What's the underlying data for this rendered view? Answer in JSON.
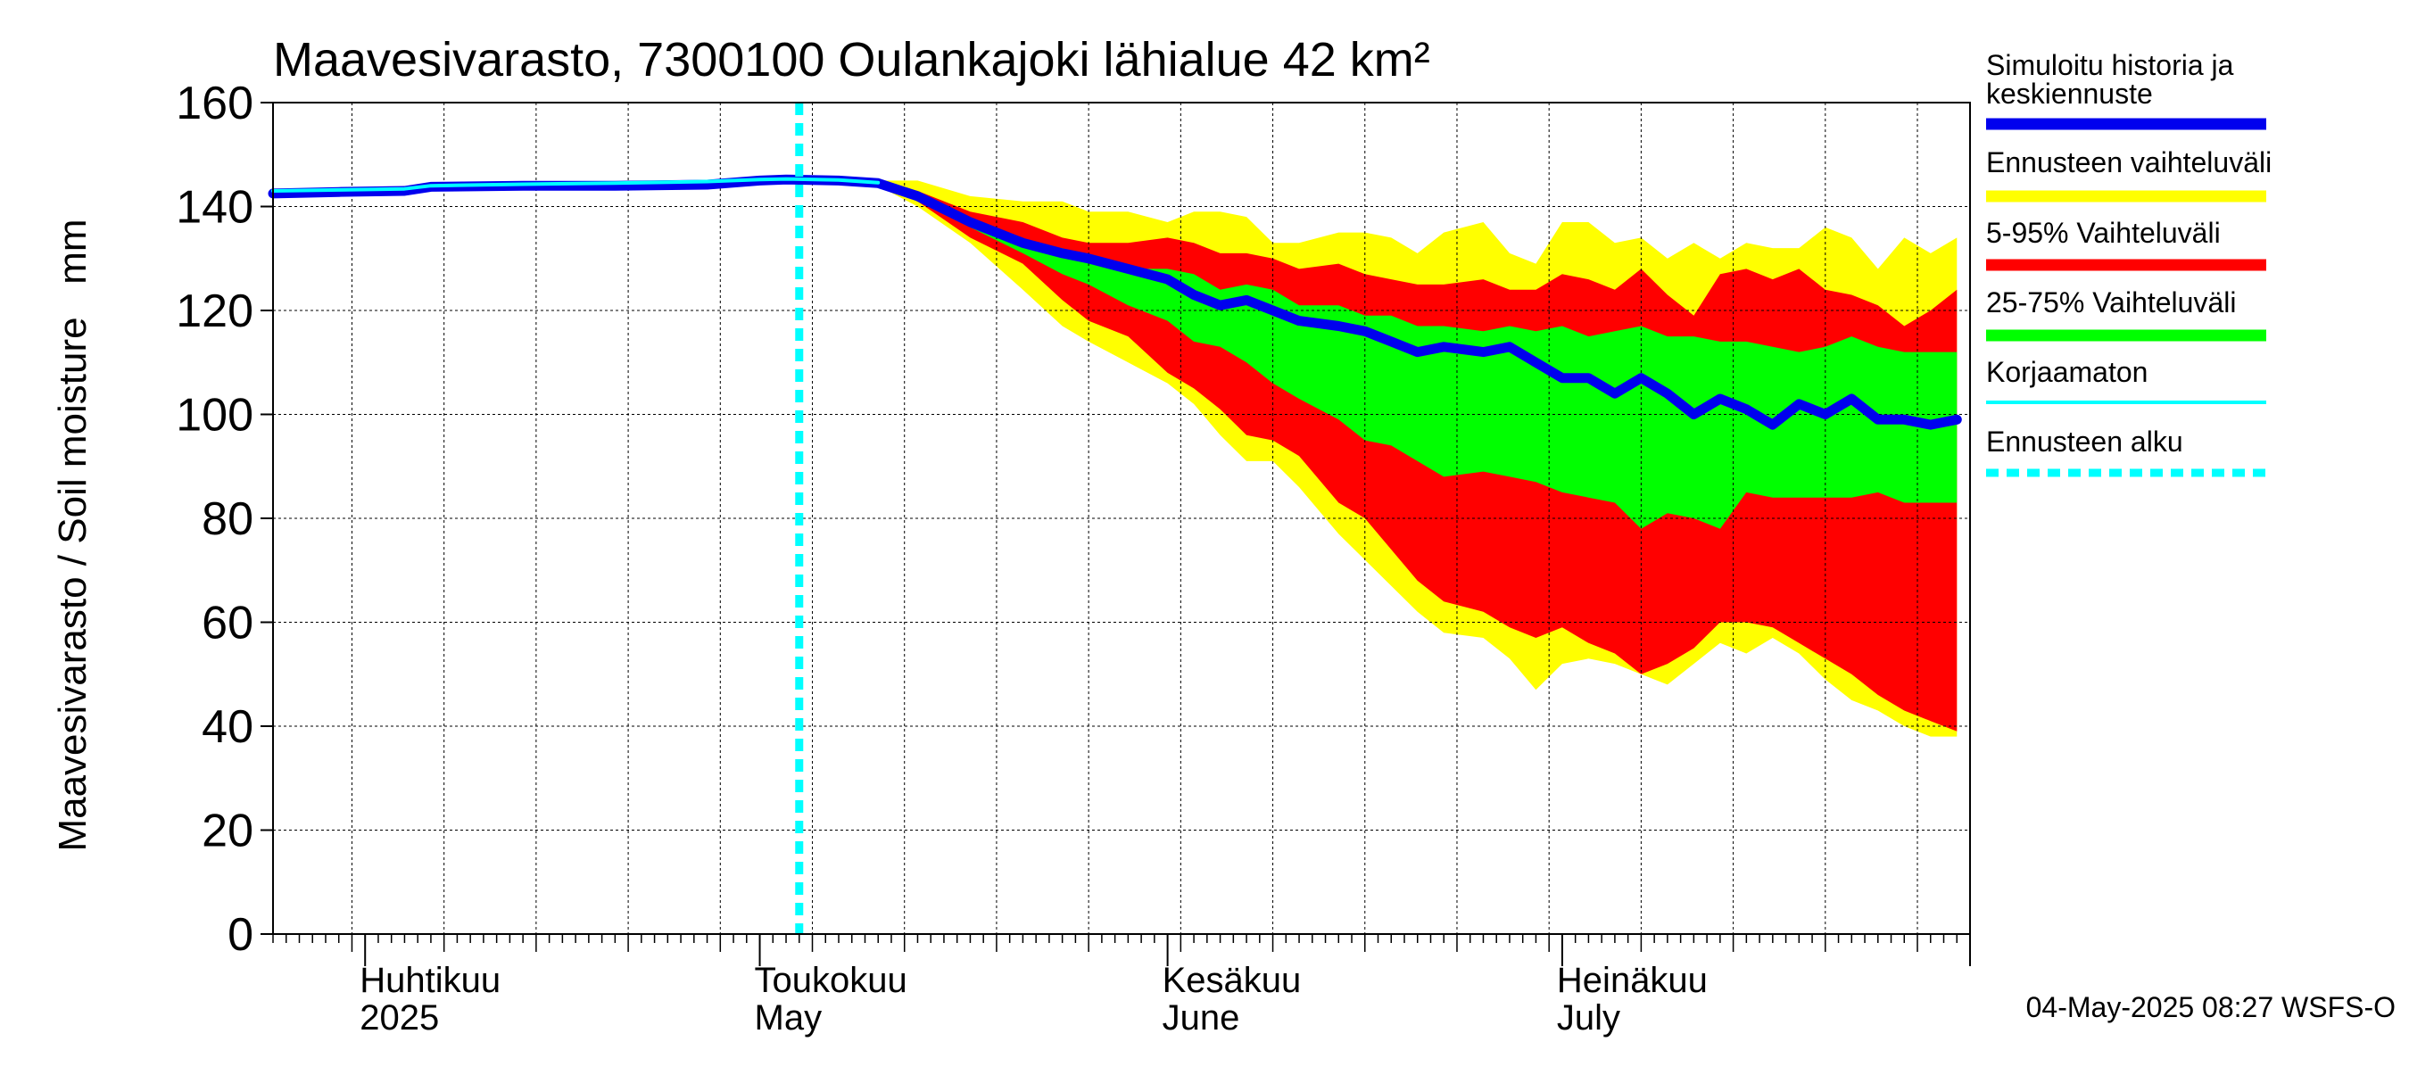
{
  "chart_data": {
    "type": "area",
    "title": "Maavesivarasto, 7300100 Oulankajoki lähialue 42 km²",
    "ylabel": "Maavesivarasto / Soil moisture   mm",
    "ylim": [
      0,
      160
    ],
    "yticks": [
      0,
      20,
      40,
      60,
      80,
      100,
      120,
      140,
      160
    ],
    "xlim": [
      "2025-03-25",
      "2025-08-01"
    ],
    "forecast_start": "2025-05-04",
    "month_labels": [
      {
        "date": "2025-04-01",
        "fi": "Huhtikuu",
        "en": "2025"
      },
      {
        "date": "2025-05-01",
        "fi": "Toukokuu",
        "en": "May"
      },
      {
        "date": "2025-06-01",
        "fi": "Kesäkuu",
        "en": "June"
      },
      {
        "date": "2025-07-01",
        "fi": "Heinäkuu",
        "en": "July"
      }
    ],
    "legend": [
      {
        "label": "Simuloitu historia ja keskiennuste",
        "color": "#0000ee",
        "style": "thick"
      },
      {
        "label": "Ennusteen vaihteluväli",
        "color": "#ffff00",
        "style": "band"
      },
      {
        "label": "5-95% Vaihteluväli",
        "color": "#ff0000",
        "style": "band"
      },
      {
        "label": "25-75% Vaihteluväli",
        "color": "#00ff00",
        "style": "band"
      },
      {
        "label": "Korjaamaton",
        "color": "#00ffff",
        "style": "thin"
      },
      {
        "label": "Ennusteen alku",
        "color": "#00ffff",
        "style": "dashed"
      }
    ],
    "series": [
      {
        "name": "Simuloitu historia ja keskiennuste",
        "x": [
          "2025-03-25",
          "2025-03-30",
          "2025-04-04",
          "2025-04-06",
          "2025-04-13",
          "2025-04-20",
          "2025-04-27",
          "2025-05-01",
          "2025-05-03",
          "2025-05-07",
          "2025-05-10",
          "2025-05-13",
          "2025-05-17",
          "2025-05-21",
          "2025-05-24",
          "2025-05-26",
          "2025-05-29",
          "2025-06-01",
          "2025-06-03",
          "2025-06-05",
          "2025-06-07",
          "2025-06-09",
          "2025-06-11",
          "2025-06-14",
          "2025-06-16",
          "2025-06-18",
          "2025-06-20",
          "2025-06-22",
          "2025-06-25",
          "2025-06-27",
          "2025-06-29",
          "2025-07-01",
          "2025-07-03",
          "2025-07-05",
          "2025-07-07",
          "2025-07-09",
          "2025-07-11",
          "2025-07-13",
          "2025-07-15",
          "2025-07-17",
          "2025-07-19",
          "2025-07-21",
          "2025-07-23",
          "2025-07-25",
          "2025-07-27",
          "2025-07-29",
          "2025-07-31"
        ],
        "values": [
          142.5,
          142.8,
          143.0,
          143.8,
          144.0,
          144.0,
          144.2,
          145.0,
          145.2,
          145.0,
          144.5,
          142,
          137,
          133,
          131,
          130,
          128,
          126,
          123,
          121,
          122,
          120,
          118,
          117,
          116,
          114,
          112,
          113,
          112,
          113,
          110,
          107,
          107,
          104,
          107,
          104,
          100,
          103,
          101,
          98,
          102,
          100,
          103,
          99,
          99,
          98,
          99
        ]
      },
      {
        "name": "Korjaamaton",
        "x": [
          "2025-03-25",
          "2025-03-30",
          "2025-04-04",
          "2025-04-06",
          "2025-04-13",
          "2025-04-20",
          "2025-04-27",
          "2025-05-01",
          "2025-05-03",
          "2025-05-07",
          "2025-05-10"
        ],
        "values": [
          143.0,
          143.2,
          143.4,
          144.0,
          144.3,
          144.5,
          144.8,
          145.2,
          145.3,
          145.1,
          144.6
        ]
      }
    ],
    "bands": {
      "x": [
        "2025-05-10",
        "2025-05-13",
        "2025-05-17",
        "2025-05-21",
        "2025-05-24",
        "2025-05-26",
        "2025-05-29",
        "2025-06-01",
        "2025-06-03",
        "2025-06-05",
        "2025-06-07",
        "2025-06-09",
        "2025-06-11",
        "2025-06-14",
        "2025-06-16",
        "2025-06-18",
        "2025-06-20",
        "2025-06-22",
        "2025-06-25",
        "2025-06-27",
        "2025-06-29",
        "2025-07-01",
        "2025-07-03",
        "2025-07-05",
        "2025-07-07",
        "2025-07-09",
        "2025-07-11",
        "2025-07-13",
        "2025-07-15",
        "2025-07-17",
        "2025-07-19",
        "2025-07-21",
        "2025-07-23",
        "2025-07-25",
        "2025-07-27",
        "2025-07-29",
        "2025-07-31"
      ],
      "yellow_upper": [
        145,
        145,
        142,
        141,
        141,
        139,
        139,
        137,
        139,
        139,
        138,
        133,
        133,
        135,
        135,
        134,
        131,
        135,
        137,
        131,
        129,
        137,
        137,
        133,
        134,
        130,
        133,
        130,
        133,
        132,
        132,
        136,
        134,
        128,
        134,
        131,
        134
      ],
      "yellow_lower": [
        144,
        140,
        133,
        124,
        117,
        114,
        110,
        106,
        102,
        96,
        91,
        91,
        86,
        77,
        72,
        67,
        62,
        58,
        57,
        53,
        47,
        52,
        53,
        52,
        50,
        48,
        52,
        56,
        54,
        57,
        54,
        49,
        45,
        43,
        40,
        38,
        38
      ],
      "red_upper": [
        145,
        143,
        139,
        137,
        134,
        133,
        133,
        134,
        133,
        131,
        131,
        130,
        128,
        129,
        127,
        126,
        125,
        125,
        126,
        124,
        124,
        127,
        126,
        124,
        128,
        123,
        119,
        127,
        128,
        126,
        128,
        124,
        123,
        121,
        117,
        120,
        124
      ],
      "red_lower": [
        144,
        141,
        134,
        129,
        122,
        118,
        115,
        108,
        105,
        101,
        96,
        95,
        92,
        83,
        80,
        74,
        68,
        64,
        62,
        59,
        57,
        59,
        56,
        54,
        50,
        52,
        55,
        60,
        60,
        59,
        56,
        53,
        50,
        46,
        43,
        41,
        39
      ],
      "green_upper": [
        145,
        142,
        137,
        133,
        132,
        130,
        128,
        128,
        127,
        124,
        125,
        124,
        121,
        121,
        119,
        119,
        117,
        117,
        116,
        117,
        116,
        117,
        115,
        116,
        117,
        115,
        115,
        114,
        114,
        113,
        112,
        113,
        115,
        113,
        112,
        112,
        112
      ],
      "green_lower": [
        144,
        142,
        136,
        131,
        127,
        125,
        121,
        118,
        114,
        113,
        110,
        106,
        103,
        99,
        95,
        94,
        91,
        88,
        89,
        88,
        87,
        85,
        84,
        83,
        78,
        81,
        80,
        78,
        85,
        84,
        84,
        84,
        84,
        85,
        83,
        83,
        83
      ]
    }
  },
  "timestamp": "04-May-2025 08:27 WSFS-O"
}
